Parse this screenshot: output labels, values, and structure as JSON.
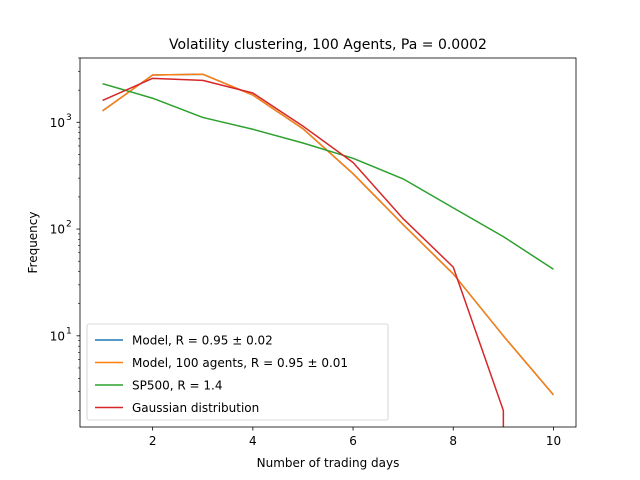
{
  "chart_data": {
    "type": "line",
    "title": "Volatility clustering, 100 Agents, Pa = 0.0002",
    "xlabel": "Number of trading days",
    "ylabel": "Frequency",
    "xlim": [
      0.55,
      10.45
    ],
    "ylim": [
      1.4,
      4000
    ],
    "yscale": "log",
    "xticks": [
      2,
      4,
      6,
      8,
      10
    ],
    "xtick_labels": [
      "2",
      "4",
      "6",
      "8",
      "10"
    ],
    "yticks": [
      10,
      100,
      1000
    ],
    "ytick_labels": [
      "10",
      "10",
      "10"
    ],
    "ytick_exponents": [
      "1",
      "2",
      "3"
    ],
    "grid": false,
    "legend_position": "lower left",
    "series": [
      {
        "name": "Model, R = 0.95 ± 0.02",
        "color": "#1f77b4",
        "x": [
          1,
          2,
          3,
          4,
          5,
          6,
          7,
          8,
          9,
          10
        ],
        "y": [
          1280,
          2770,
          2820,
          1800,
          870,
          330,
          110,
          38,
          10,
          2.8
        ]
      },
      {
        "name": "Model, 100 agents, R = 0.95 ± 0.01",
        "color": "#ff7f0e",
        "x": [
          1,
          2,
          3,
          4,
          5,
          6,
          7,
          8,
          9,
          10
        ],
        "y": [
          1280,
          2770,
          2820,
          1800,
          870,
          330,
          110,
          38,
          10,
          2.8
        ]
      },
      {
        "name": "SP500, R = 1.4",
        "color": "#2ca02c",
        "x": [
          1,
          2,
          3,
          4,
          5,
          6,
          7,
          8,
          9,
          10
        ],
        "y": [
          2300,
          1680,
          1110,
          860,
          640,
          460,
          295,
          158,
          85,
          42
        ]
      },
      {
        "name": "Gaussian distribution",
        "color": "#d62728",
        "x": [
          1,
          2,
          3,
          4,
          5,
          6,
          7,
          8,
          9,
          9
        ],
        "y": [
          1600,
          2580,
          2470,
          1880,
          920,
          420,
          125,
          44,
          2,
          1.4
        ]
      }
    ]
  }
}
